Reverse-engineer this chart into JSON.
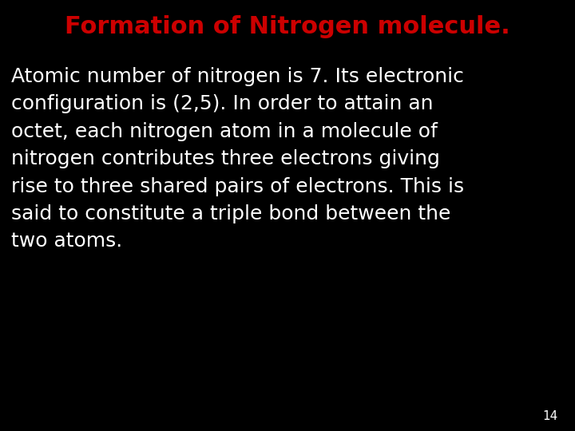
{
  "background_color": "#000000",
  "title": "Formation of Nitrogen molecule.",
  "title_color": "#cc0000",
  "title_fontsize": 22,
  "body_lines": [
    "Atomic number of nitrogen is 7. Its electronic",
    "configuration is (2,5). In order to attain an",
    "octet, each nitrogen atom in a molecule of",
    "nitrogen contributes three electrons giving",
    "rise to three shared pairs of electrons. This is",
    "said to constitute a triple bond between the",
    "two atoms."
  ],
  "body_color": "#ffffff",
  "body_fontsize": 18,
  "page_number": "14",
  "page_number_color": "#ffffff",
  "page_number_fontsize": 11
}
